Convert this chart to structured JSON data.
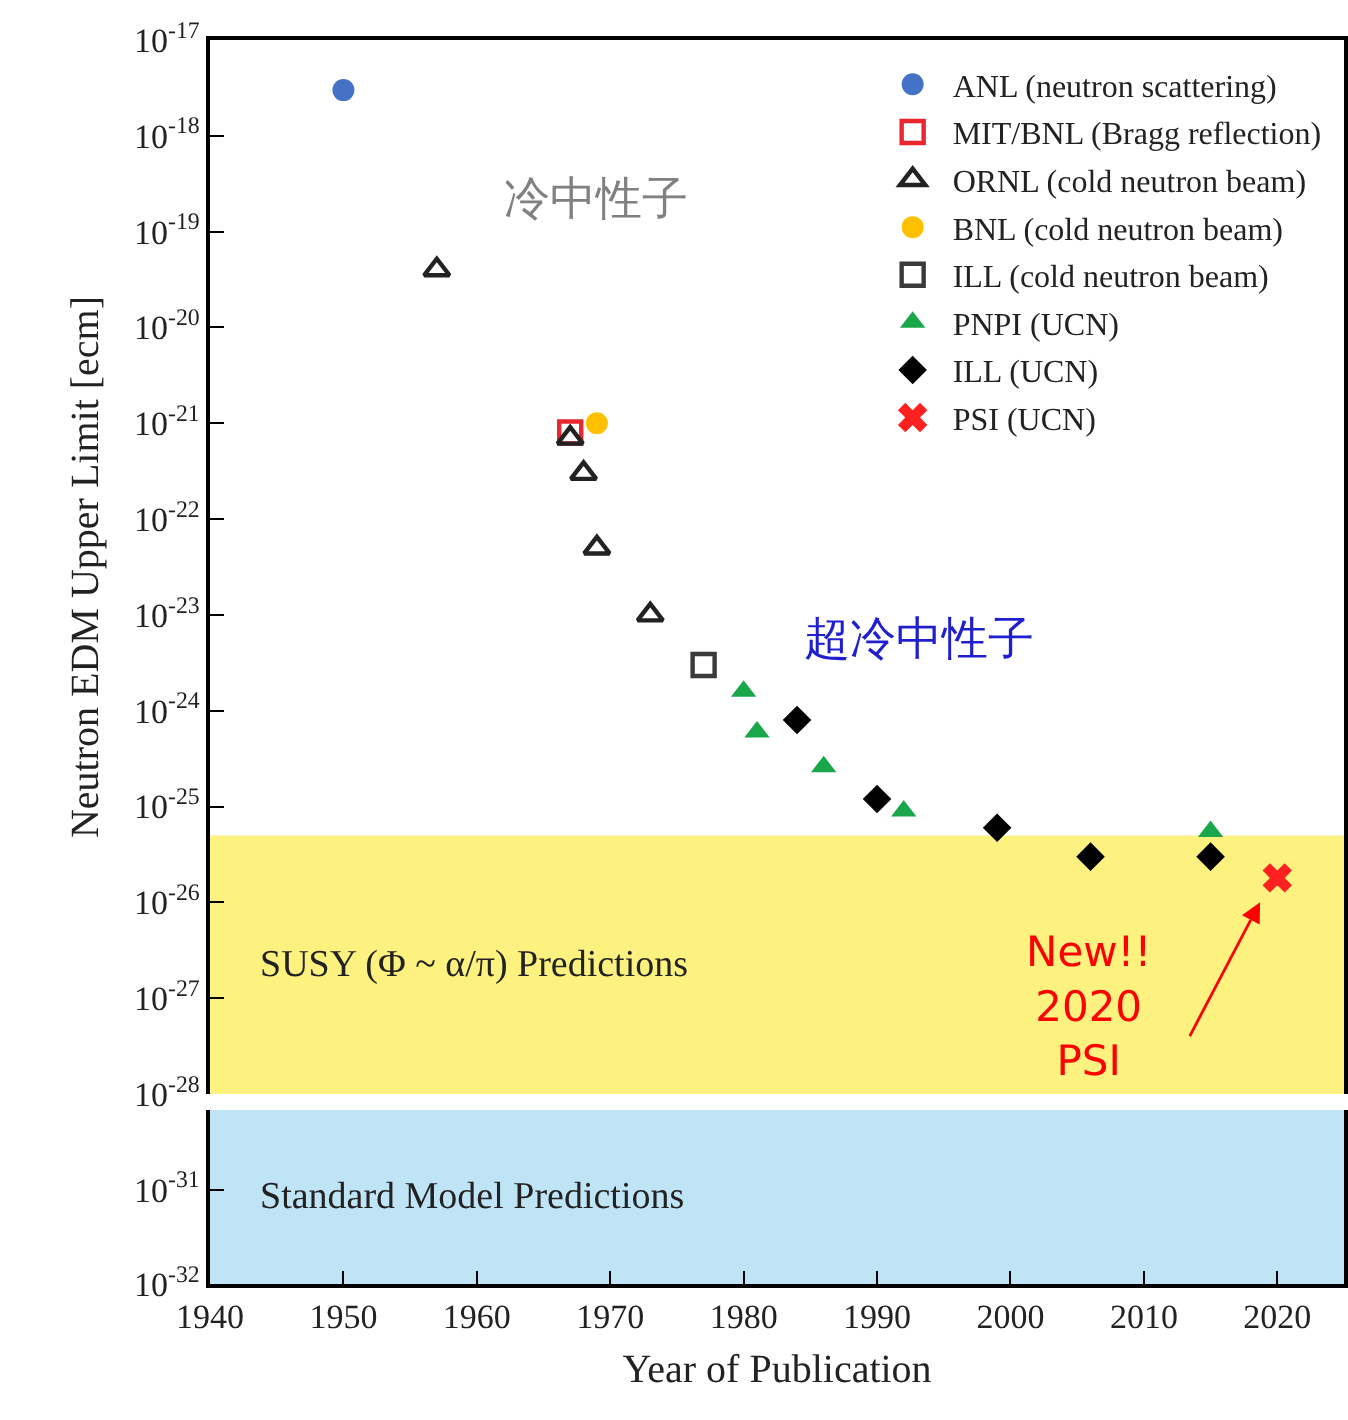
{
  "chart_data": [
    {
      "type": "scatter",
      "ylabel": "Neutron EDM Upper Limit [ecm]",
      "log": true,
      "legend": "top right",
      "xlim": [
        1940,
        2025
      ],
      "tick_labels": "y",
      "ylim": [
        1e-28,
        1e-17
      ],
      "yticks": [
        {
          "value": 1e-17,
          "label": "10$^{-17}$"
        },
        {
          "value": 1e-18,
          "label": "10$^{-18}$"
        },
        {
          "value": 1e-19,
          "label": "10$^{-19}$"
        },
        {
          "value": 1e-20,
          "label": "10$^{-20}$"
        },
        {
          "value": 1e-21,
          "label": "10$^{-21}$"
        },
        {
          "value": 1e-22,
          "label": "10$^{-22}$"
        },
        {
          "value": 1e-23,
          "label": "10$^{-23}$"
        },
        {
          "value": 1e-24,
          "label": "10$^{-24}$"
        },
        {
          "value": 1e-25,
          "label": "10$^{-25}$"
        },
        {
          "value": 1e-26,
          "label": "10$^{-26}$"
        },
        {
          "value": 1e-27,
          "label": "10$^{-27}$"
        },
        {
          "value": 1e-28,
          "label": "10$^{-28}$"
        }
      ],
      "series": [
        {
          "name": "ANL (neutron scattering)",
          "color": "#4472c4",
          "marker": "circle",
          "x": [
            1950
          ],
          "values": [
            3e-18
          ]
        },
        {
          "name": "MIT/BNL (Bragg reflection)",
          "color": "#e8282e",
          "marker": "square-open",
          "x": [
            1967
          ],
          "values": [
            8e-22
          ]
        },
        {
          "name": "ORNL (cold neutron beam)",
          "color": "#222222",
          "marker": "triangle-open",
          "x": [
            1957,
            1967,
            1968,
            1969,
            1973
          ],
          "values": [
            4e-20,
            7e-22,
            3e-22,
            5e-23,
            1e-23
          ]
        },
        {
          "name": "BNL (cold neutron beam)",
          "color": "#ffc000",
          "marker": "circle",
          "x": [
            1969
          ],
          "values": [
            1e-21
          ]
        },
        {
          "name": "ILL (cold neutron beam)",
          "color": "#3a3a3a",
          "marker": "square-open",
          "x": [
            1977
          ],
          "values": [
            3e-24
          ]
        },
        {
          "name": "PNPI (UCN)",
          "color": "#1aa64a",
          "marker": "triangle",
          "x": [
            1980,
            1981,
            1986,
            1992,
            2015
          ],
          "values": [
            1.6e-24,
            6e-25,
            2.6e-25,
            9e-26,
            5.5e-26
          ]
        },
        {
          "name": "ILL (UCN)",
          "color": "#000000",
          "marker": "diamond",
          "x": [
            1984,
            1990,
            1999,
            2006,
            2015
          ],
          "values": [
            8e-25,
            1.2e-25,
            6e-26,
            3e-26,
            3e-26
          ]
        },
        {
          "name": "PSI (UCN)",
          "color": "#ff2020",
          "marker": "cross",
          "x": [
            2020
          ],
          "values": [
            1.8e-26
          ]
        }
      ],
      "bands": [
        {
          "axis": "y",
          "from": 1e-28,
          "to": 5e-26,
          "label": "SUSY (Φ ~ α/π) Predictions",
          "color": "#fdf27f"
        }
      ],
      "annotations": [
        "冷中性子",
        "超冷中性子",
        "New!!\n2020\nPSI"
      ]
    },
    {
      "type": "scatter",
      "xlabel": "Year of Publication",
      "log": true,
      "xlim": [
        1940,
        2025
      ],
      "xticks": [
        1940,
        1950,
        1960,
        1970,
        1980,
        1990,
        2000,
        2010,
        2020
      ],
      "ylim": [
        1e-32,
        7e-31
      ],
      "yticks": [
        {
          "value": 1e-31,
          "label": "10$^{-31}$"
        },
        {
          "value": 1e-32,
          "label": "10$^{-32}$"
        }
      ],
      "bands": [
        {
          "axis": "y",
          "from": 1e-32,
          "to": 7e-31,
          "label": "Standard Model Predictions",
          "color": "#bfe4f6"
        }
      ]
    }
  ]
}
